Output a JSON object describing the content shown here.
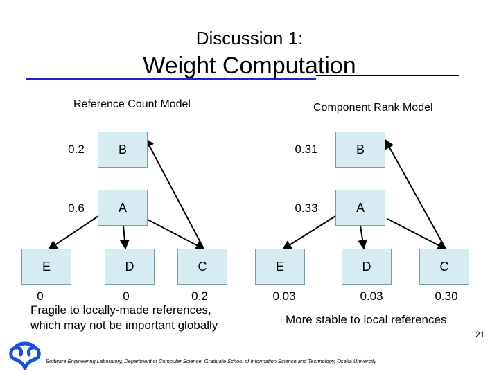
{
  "slide": {
    "subtitle": "Discussion 1:",
    "title": "Weight Computation",
    "page_number": "21",
    "footer": "Software Engineering Laboratory, Department of Computer Science, Graduate School of Information Science and Technology, Osaka University",
    "logo_icon": "university-logo-icon"
  },
  "left": {
    "label": "Reference Count Model",
    "nodes": {
      "B": "B",
      "A": "A",
      "E": "E",
      "D": "D",
      "C": "C"
    },
    "weights": {
      "B": "0.2",
      "A": "0.6",
      "E": "0",
      "D": "0",
      "C": "0.2"
    },
    "caption_line1": "Fragile to locally-made references,",
    "caption_line2": "which may not be important globally"
  },
  "right": {
    "label": "Component Rank Model",
    "nodes": {
      "B": "B",
      "A": "A",
      "E": "E",
      "D": "D",
      "C": "C"
    },
    "weights": {
      "B": "0.31",
      "A": "0.33",
      "E": "0.03",
      "D": "0.03",
      "C": "0.30"
    },
    "caption": "More stable to local references"
  },
  "colors": {
    "node_fill": "#d6ebf2",
    "title_rule": "#1f23c8",
    "logo": "#1a4fd6"
  }
}
